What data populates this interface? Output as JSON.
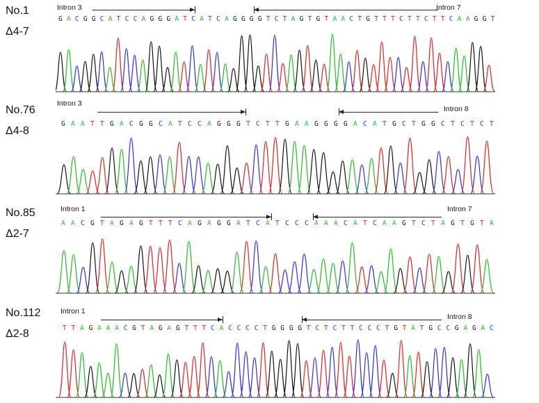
{
  "colors": {
    "A": "#1fbf1f",
    "C": "#2a2aff",
    "G": "#111111",
    "T": "#ee1c1c"
  },
  "panels": [
    {
      "sample": "No.1",
      "deletion": "Δ4-7",
      "left_intron": "Intron 3",
      "right_intron": "Intron 7",
      "sequence": "GACGGCATCCAGGGATCATCAGGGGTCTAGTGTAACTGTTTCTTCTTCAAGGT"
    },
    {
      "sample": "No.76",
      "deletion": "Δ4-8",
      "left_intron": "Intron 3",
      "right_intron": "Intron 8",
      "sequence": "GAATTGACGGCATCCAGGGTCTTGAAGGGGACATGCTGGCTCTCT"
    },
    {
      "sample": "No.85",
      "deletion": "Δ2-7",
      "left_intron": "Intron 1",
      "right_intron": "Intron 7",
      "sequence": "AACGTAGAGTTTCAGAGGATCATCCCAAACATCAAGTCTAGTGTA"
    },
    {
      "sample": "No.112",
      "deletion": "Δ2-8",
      "left_intron": "Intron 1",
      "right_intron": "Intron 8",
      "sequence": "TTAGAAACGTAGAGTTTCACCCCTGGGGTCTCTTCCCTGTATGCCGAGAC"
    }
  ]
}
